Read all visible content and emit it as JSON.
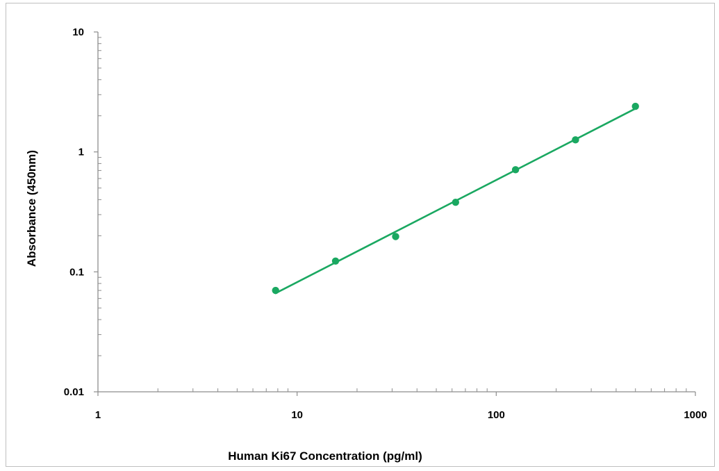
{
  "chart_data": {
    "type": "scatter",
    "title": "",
    "xlabel": "Human Ki67 Concentration (pg/ml)",
    "ylabel": "Absorbance (450nm)",
    "x_scale": "log",
    "y_scale": "log",
    "xlim": [
      1,
      1000
    ],
    "ylim": [
      0.01,
      10
    ],
    "x_ticks": [
      "1",
      "10",
      "100",
      "1000"
    ],
    "y_ticks": [
      "0.01",
      "0.1",
      "1",
      "10"
    ],
    "grid": false,
    "legend": "none",
    "series": [
      {
        "x": [
          7.8,
          15.6,
          31.25,
          62.5,
          125,
          250,
          500
        ],
        "y": [
          0.07,
          0.123,
          0.197,
          0.38,
          0.71,
          1.26,
          2.4
        ],
        "marker": "circle",
        "trendline": "power fit",
        "color": "#1aa861"
      }
    ]
  }
}
